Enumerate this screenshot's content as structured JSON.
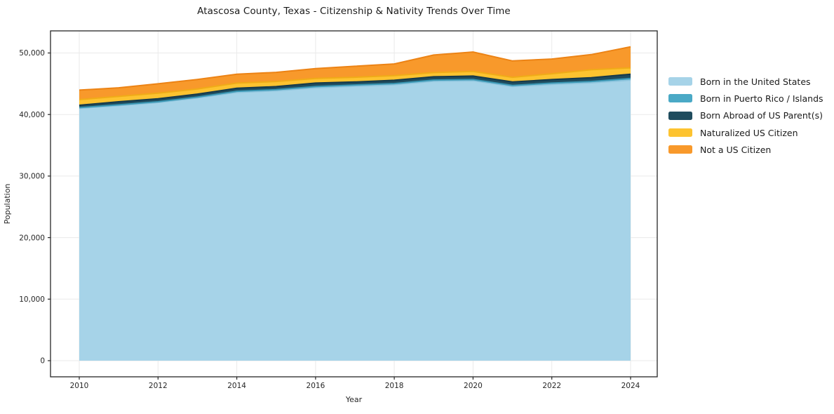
{
  "title": "Atascosa County, Texas - Citizenship & Nativity Trends Over Time",
  "axes": {
    "x": {
      "label": "Year",
      "ticks": [
        {
          "v": 2010,
          "label": "2010"
        },
        {
          "v": 2012,
          "label": "2012"
        },
        {
          "v": 2014,
          "label": "2014"
        },
        {
          "v": 2016,
          "label": "2016"
        },
        {
          "v": 2018,
          "label": "2018"
        },
        {
          "v": 2020,
          "label": "2020"
        },
        {
          "v": 2022,
          "label": "2022"
        },
        {
          "v": 2024,
          "label": "2024"
        }
      ]
    },
    "y": {
      "label": "Population",
      "ticks": [
        {
          "v": 0,
          "label": "0"
        },
        {
          "v": 10000,
          "label": "10,000"
        },
        {
          "v": 20000,
          "label": "20,000"
        },
        {
          "v": 30000,
          "label": "30,000"
        },
        {
          "v": 40000,
          "label": "40,000"
        },
        {
          "v": 50000,
          "label": "50,000"
        }
      ]
    }
  },
  "legend": {
    "items": [
      {
        "label": "Born in the United States",
        "color": "#a6d3e8"
      },
      {
        "label": "Born in Puerto Rico / Islands",
        "color": "#4aa9c6"
      },
      {
        "label": "Born Abroad of US Parent(s)",
        "color": "#1f4c5e"
      },
      {
        "label": "Naturalized US Citizen",
        "color": "#fdc330"
      },
      {
        "label": "Not a US Citizen",
        "color": "#f8992b"
      }
    ]
  },
  "chart_data": {
    "type": "area",
    "stacked": true,
    "title": "Atascosa County, Texas - Citizenship & Nativity Trends Over Time",
    "xlabel": "Year",
    "ylabel": "Population",
    "grid": true,
    "legend_position": "right outside",
    "xlim": [
      2009.3,
      2024.7
    ],
    "ylim": [
      0,
      53500
    ],
    "x": [
      2010,
      2011,
      2012,
      2013,
      2014,
      2015,
      2016,
      2017,
      2018,
      2019,
      2020,
      2021,
      2022,
      2023,
      2024
    ],
    "series": [
      {
        "name": "Born in the United States",
        "color": "#a6d3e8",
        "edge_color": "#8cc4dd",
        "values": [
          41000,
          41450,
          41950,
          42700,
          43600,
          43850,
          44350,
          44600,
          44850,
          45400,
          45500,
          44550,
          44900,
          45150,
          45600
        ]
      },
      {
        "name": "Born in Puerto Rico / Islands",
        "color": "#4aa9c6",
        "edge_color": "#3a97b4",
        "values": [
          120,
          125,
          120,
          130,
          175,
          190,
          190,
          200,
          180,
          200,
          180,
          170,
          210,
          225,
          260
        ]
      },
      {
        "name": "Born Abroad of US Parent(s)",
        "color": "#1f4c5e",
        "edge_color": "#16394a",
        "values": [
          380,
          495,
          485,
          490,
          490,
          500,
          570,
          490,
          535,
          535,
          570,
          570,
          570,
          600,
          700
        ]
      },
      {
        "name": "Naturalized US Citizen",
        "color": "#fdc330",
        "edge_color": "#f0ab18",
        "values": [
          930,
          870,
          910,
          830,
          845,
          830,
          750,
          765,
          755,
          685,
          750,
          765,
          950,
          1300,
          1020
        ]
      },
      {
        "name": "Not a US Citizen",
        "color": "#f8992b",
        "edge_color": "#ec8315",
        "values": [
          1540,
          1410,
          1535,
          1550,
          1440,
          1480,
          1600,
          1790,
          1900,
          2850,
          3160,
          2655,
          2390,
          2465,
          3420
        ]
      }
    ]
  }
}
